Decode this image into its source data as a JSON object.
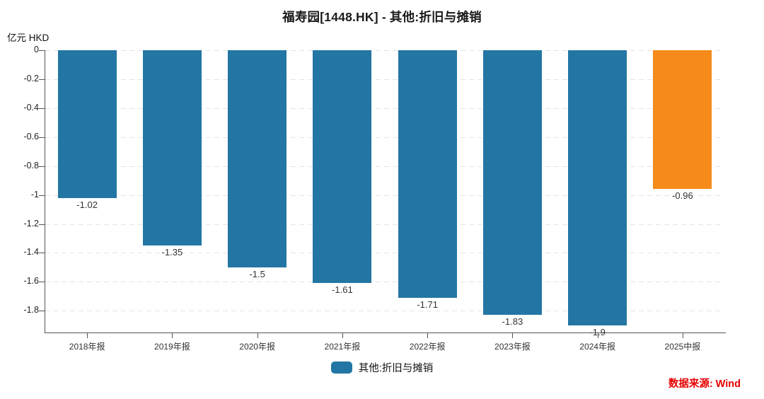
{
  "chart_data": {
    "type": "bar",
    "title": "福寿园[1448.HK] - 其他:折旧与摊销",
    "unit": "亿元 HKD",
    "legend": "其他:折旧与摊销",
    "categories": [
      "2018年报",
      "2019年报",
      "2020年报",
      "2021年报",
      "2022年报",
      "2023年报",
      "2024年报",
      "2025中报"
    ],
    "values": [
      -1.02,
      -1.35,
      -1.5,
      -1.61,
      -1.71,
      -1.83,
      -1.9,
      -0.96
    ],
    "value_labels": [
      "-1.02",
      "-1.35",
      "-1.5",
      "-1.61",
      "-1.71",
      "-1.83",
      "-1.9",
      "-0.96"
    ],
    "bar_colors": [
      "#2376A3",
      "#2376A3",
      "#2376A3",
      "#2376A3",
      "#2376A3",
      "#2376A3",
      "#2376A3",
      "#F68A1A"
    ],
    "ylim": [
      -1.95,
      0
    ],
    "yticks": [
      0,
      -0.2,
      -0.4,
      -0.6,
      -0.8,
      -1,
      -1.2,
      -1.4,
      -1.6,
      -1.8
    ],
    "ytick_labels": [
      "0",
      "-0.2",
      "-0.4",
      "-0.6",
      "-0.8",
      "-1",
      "-1.2",
      "-1.4",
      "-1.6",
      "-1.8"
    ],
    "grid": "dashed horizontal",
    "legend_position": "bottom-center"
  },
  "colors": {
    "bar_default": "#2376A3",
    "bar_highlight": "#F68A1A",
    "source_red": "#E60000",
    "legend_swatch": "#2376A3"
  },
  "footer": {
    "source": "数据来源: Wind"
  }
}
